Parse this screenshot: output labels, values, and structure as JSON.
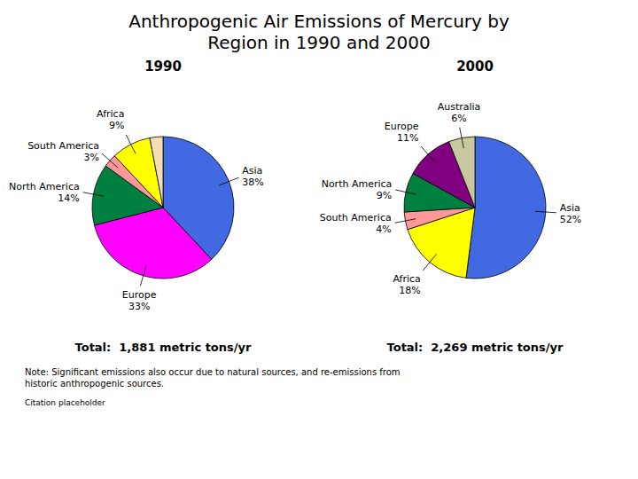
{
  "title": "Anthropogenic Air Emissions of Mercury by\nRegion in 1990 and 2000",
  "chart_data": [
    {
      "type": "pie",
      "title": "1990",
      "categories": [
        "Asia",
        "Europe",
        "North America",
        "South America",
        "Africa",
        null
      ],
      "values": [
        38,
        33,
        14,
        3,
        9,
        3
      ],
      "value_labels": [
        "38%",
        "33%",
        "14%",
        "3%",
        "9%",
        null
      ],
      "data_labels": true,
      "colors": [
        "#4169E1",
        "#FF00FF",
        "#008040",
        "#FF9999",
        "#FFFF00",
        "#F5DEB3"
      ],
      "annotations": [
        "Total:  1,881 metric tons/yr"
      ]
    },
    {
      "type": "pie",
      "title": "2000",
      "categories": [
        "Asia",
        "Africa",
        "South America",
        "North America",
        "Europe",
        "Australia"
      ],
      "values": [
        52,
        18,
        4,
        9,
        11,
        6
      ],
      "value_labels": [
        "52%",
        "18%",
        "4%",
        "9%",
        "11%",
        "6%"
      ],
      "data_labels": true,
      "colors": [
        "#4169E1",
        "#FFFF00",
        "#FF9999",
        "#008040",
        "#800080",
        "#C8C8A0"
      ],
      "annotations": [
        "Total:  2,269 metric tons/yr"
      ]
    }
  ],
  "annotations": [
    "Note: Significant emissions also occur due to natural sources, and re-emissions from\nhistoric anthropogenic sources.",
    "Citation placeholder"
  ]
}
